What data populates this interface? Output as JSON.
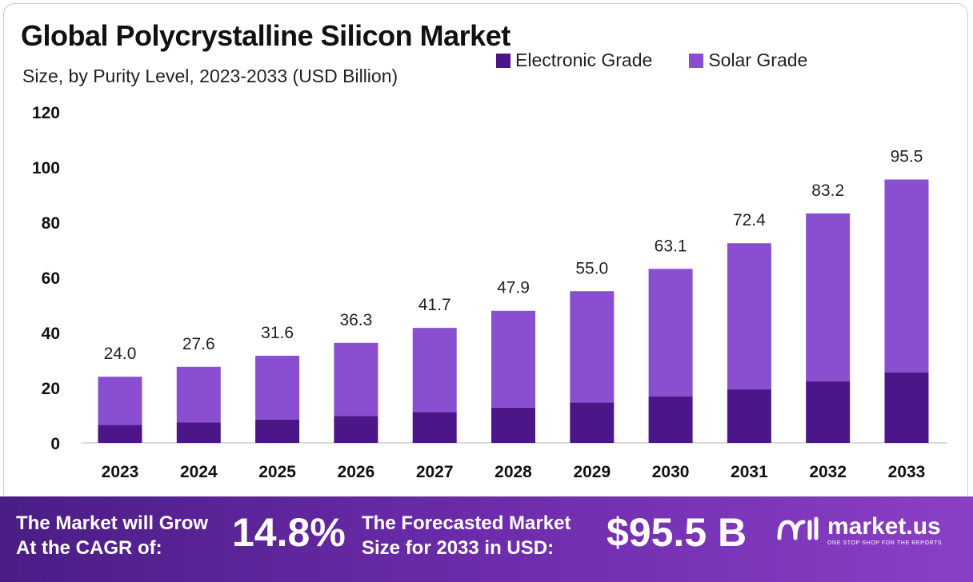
{
  "chart_data": {
    "type": "bar",
    "stacked": true,
    "title": "Global Polycrystalline Silicon Market",
    "subtitle": "Size, by Purity Level, 2023-2033 (USD Billion)",
    "categories": [
      "2023",
      "2024",
      "2025",
      "2026",
      "2027",
      "2028",
      "2029",
      "2030",
      "2031",
      "2032",
      "2033"
    ],
    "series": [
      {
        "name": "Electronic Grade",
        "color": "#4b1688",
        "values": [
          6.5,
          7.4,
          8.5,
          9.7,
          11.2,
          12.8,
          14.7,
          16.9,
          19.4,
          22.3,
          25.6
        ]
      },
      {
        "name": "Solar Grade",
        "color": "#8a4fd0",
        "values": [
          17.5,
          20.2,
          23.1,
          26.6,
          30.5,
          35.1,
          40.3,
          46.2,
          53.0,
          60.9,
          69.9
        ]
      }
    ],
    "totals": [
      "24.0",
      "27.6",
      "31.6",
      "36.3",
      "41.7",
      "47.9",
      "55.0",
      "63.1",
      "72.4",
      "83.2",
      "95.5"
    ],
    "y_ticks": [
      "0",
      "20",
      "40",
      "60",
      "80",
      "100",
      "120"
    ],
    "ylim": [
      0,
      120
    ],
    "xlabel": "",
    "ylabel": "",
    "grid": false,
    "legend_position": "top-right"
  },
  "footer": {
    "cagr_line1": "The Market will Grow",
    "cagr_line2": "At the CAGR of:",
    "cagr_value": "14.8%",
    "forecast_line1": "The Forecasted Market",
    "forecast_line2": "Size for 2033 in USD:",
    "forecast_value": "$95.5 B",
    "brand_name": "market.us",
    "brand_tagline": "ONE STOP SHOP FOR THE REPORTS"
  }
}
